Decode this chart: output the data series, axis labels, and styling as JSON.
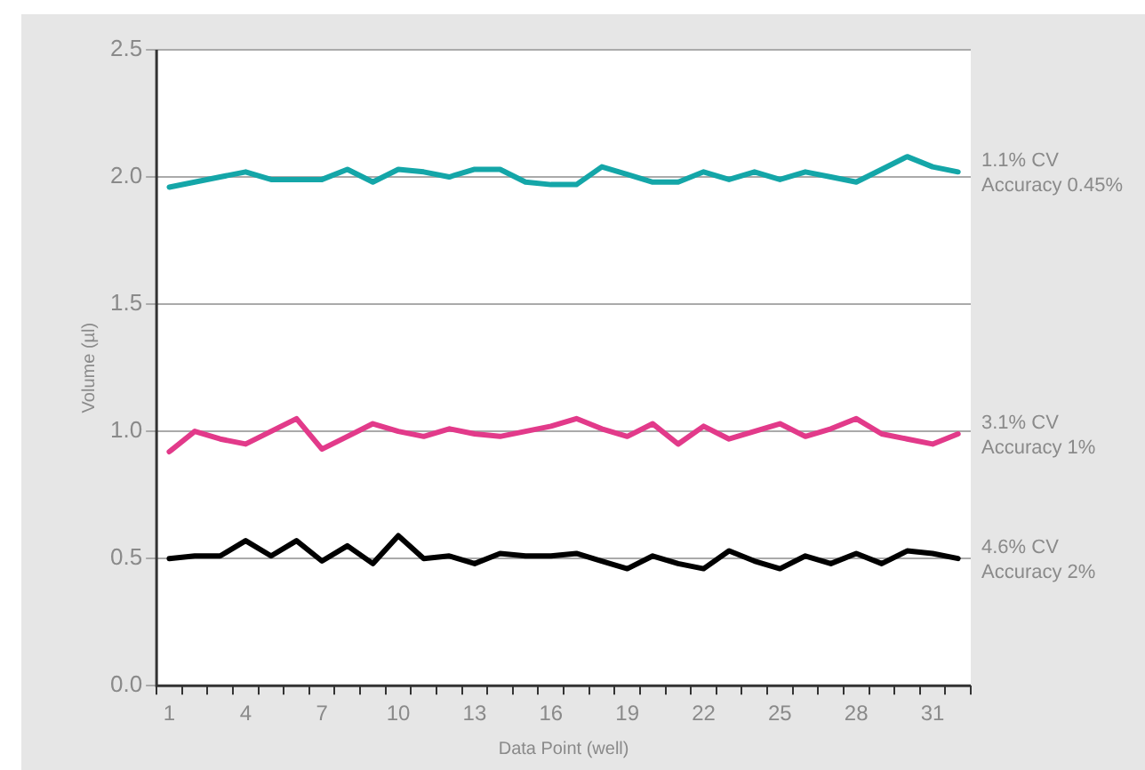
{
  "chart_data": {
    "type": "line",
    "xlabel": "Data Point (well)",
    "ylabel": "Volume (µl)",
    "categories": [
      "1",
      null,
      null,
      "4",
      null,
      null,
      "7",
      null,
      null,
      "10",
      null,
      null,
      "13",
      null,
      null,
      "16",
      null,
      null,
      "19",
      null,
      null,
      "22",
      null,
      null,
      "25",
      null,
      null,
      "28",
      null,
      null,
      "31",
      null
    ],
    "series": [
      {
        "color": "#14a6a8",
        "values": [
          1.96,
          1.98,
          2.0,
          2.02,
          1.99,
          1.99,
          1.99,
          2.03,
          1.98,
          2.03,
          2.02,
          2.0,
          2.03,
          2.03,
          1.98,
          1.97,
          1.97,
          2.04,
          2.01,
          1.98,
          1.98,
          2.02,
          1.99,
          2.02,
          1.99,
          2.02,
          2.0,
          1.98,
          2.03,
          2.08,
          2.04,
          2.02
        ]
      },
      {
        "color": "#e23a8a",
        "values": [
          0.92,
          1.0,
          0.97,
          0.95,
          1.0,
          1.05,
          0.93,
          0.98,
          1.03,
          1.0,
          0.98,
          1.01,
          0.99,
          0.98,
          1.0,
          1.02,
          1.05,
          1.01,
          0.98,
          1.03,
          0.95,
          1.02,
          0.97,
          1.0,
          1.03,
          0.98,
          1.01,
          1.05,
          0.99,
          0.97,
          0.95,
          0.99
        ]
      },
      {
        "color": "#000000",
        "values": [
          0.5,
          0.51,
          0.51,
          0.57,
          0.51,
          0.57,
          0.49,
          0.55,
          0.48,
          0.59,
          0.5,
          0.51,
          0.48,
          0.52,
          0.51,
          0.51,
          0.52,
          0.49,
          0.46,
          0.51,
          0.48,
          0.46,
          0.53,
          0.49,
          0.46,
          0.51,
          0.48,
          0.52,
          0.48,
          0.53,
          0.52,
          0.5
        ]
      }
    ],
    "ylim": [
      0,
      2.5
    ],
    "yticks": [
      {
        "value": 0,
        "label": "0.0"
      },
      {
        "value": 0.5,
        "label": "0.5"
      },
      {
        "value": 1,
        "label": "1.0"
      },
      {
        "value": 1.5,
        "label": "1.5"
      },
      {
        "value": 2,
        "label": "2.0"
      },
      {
        "value": 2.5,
        "label": "2.5"
      }
    ],
    "grid": "y",
    "legend": false,
    "marker": "none",
    "line_style": "solid",
    "annotations": [
      "1.1% CV\nAccuracy 0.45%",
      "3.1% CV\nAccuracy 1%",
      "4.6% CV\nAccuracy 2%"
    ]
  }
}
